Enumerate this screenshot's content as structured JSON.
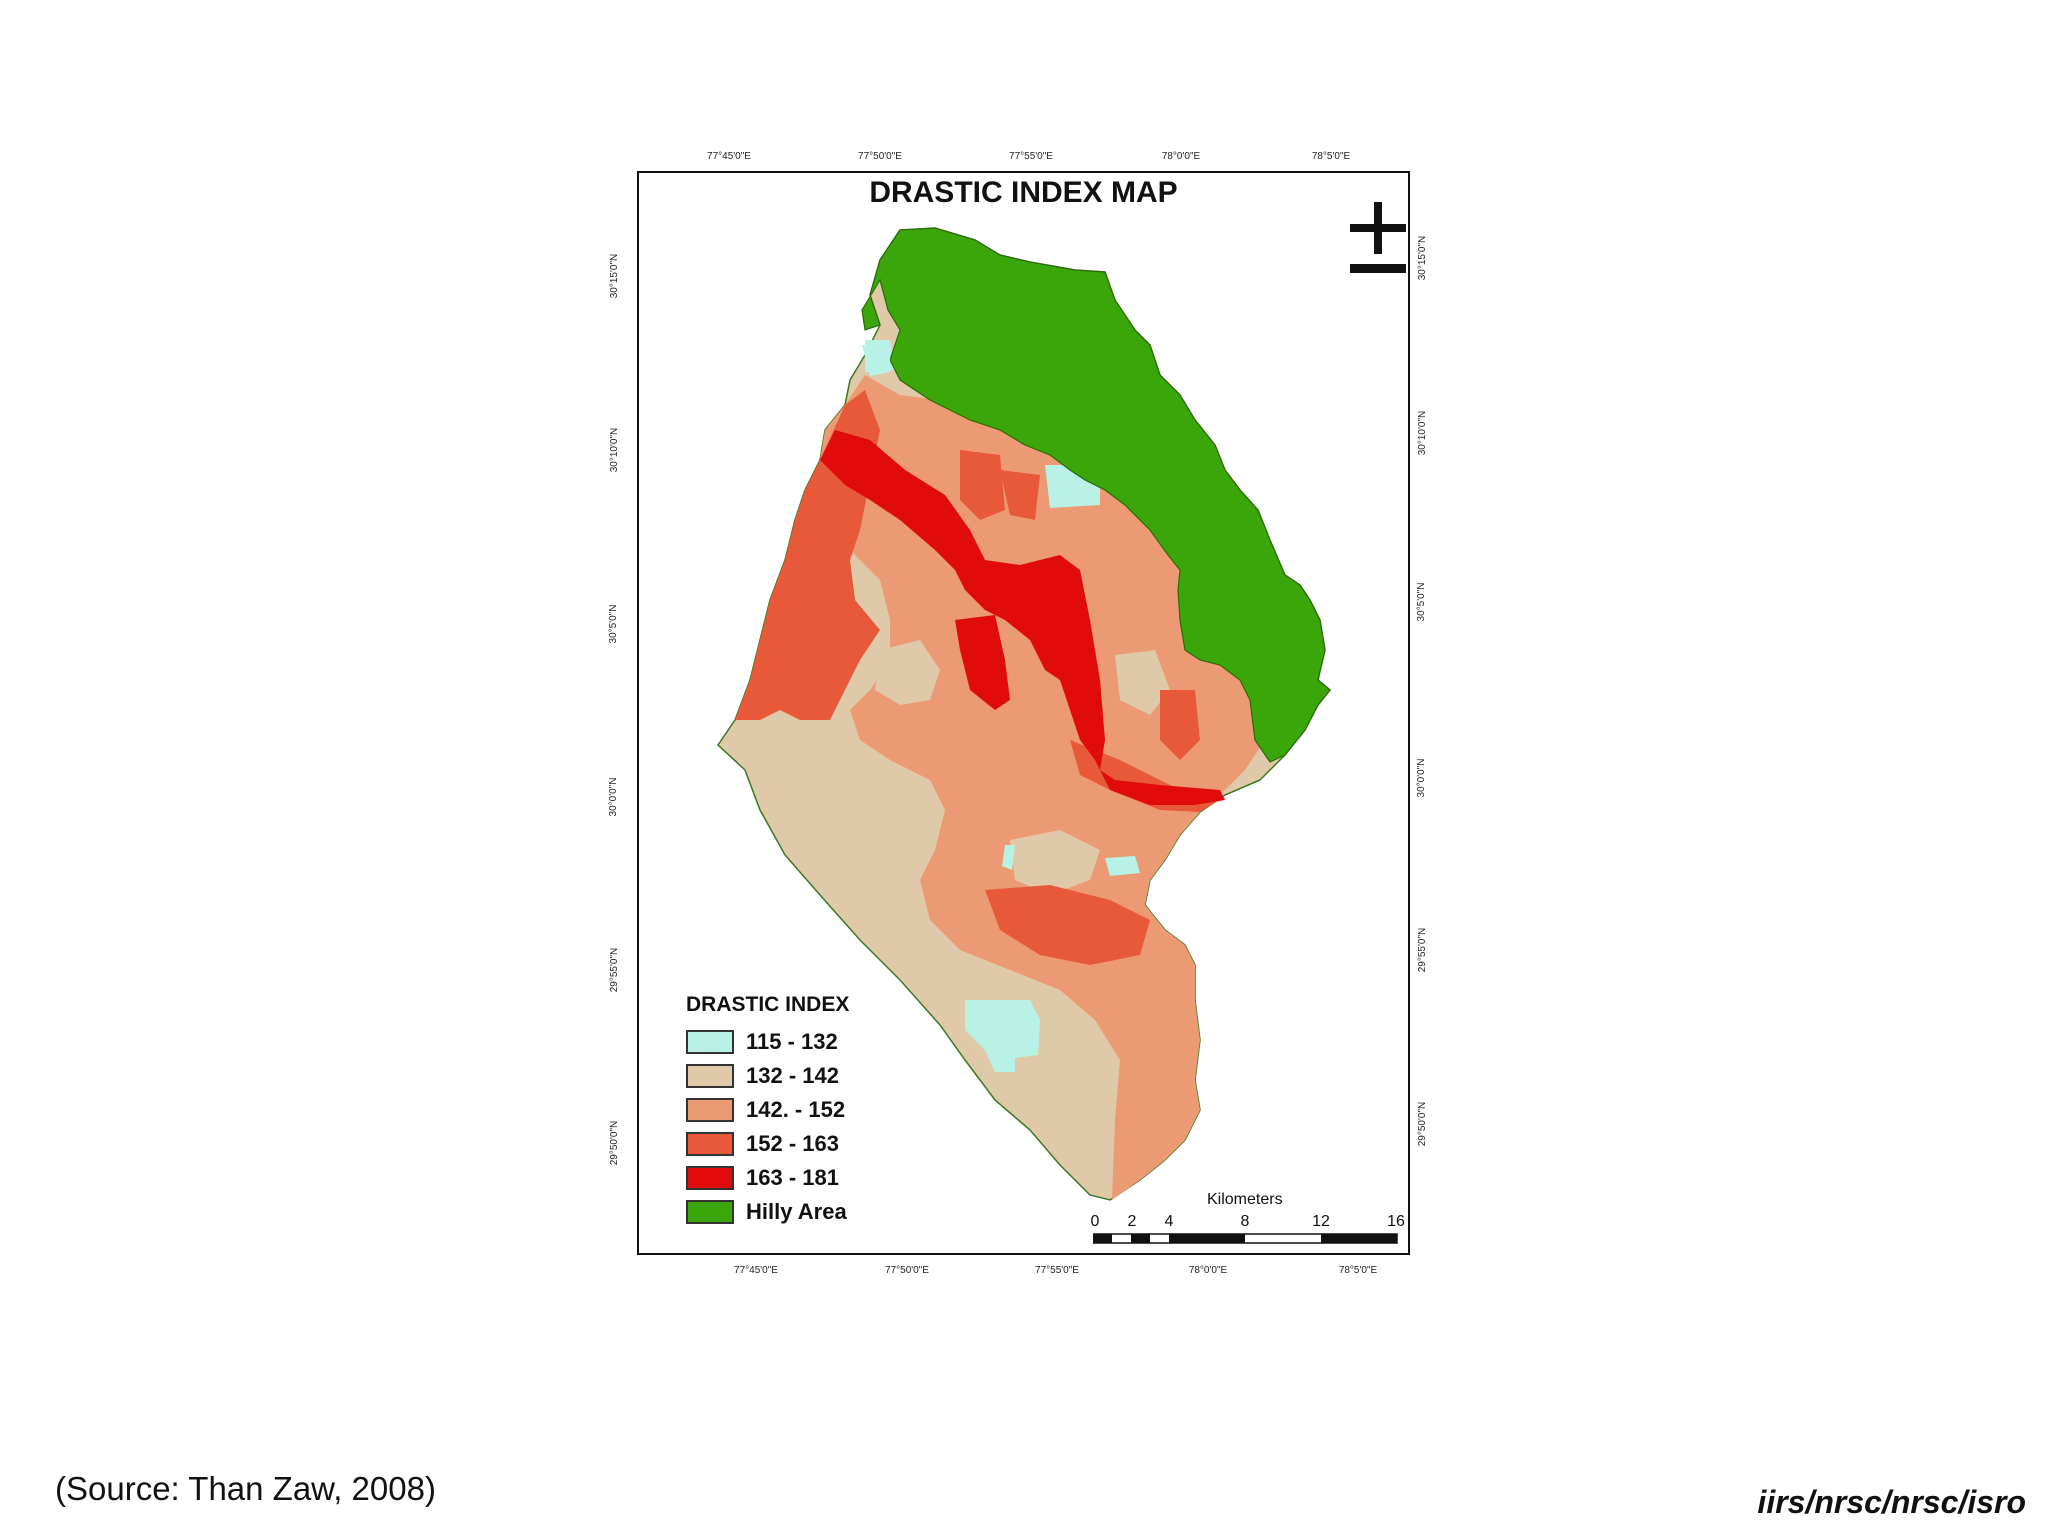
{
  "map": {
    "title": "DRASTIC INDEX MAP",
    "top_ticks": [
      "77°45'0\"E",
      "77°50'0\"E",
      "77°55'0\"E",
      "78°0'0\"E",
      "78°5'0\"E"
    ],
    "bottom_ticks": [
      "77°45'0\"E",
      "77°50'0\"E",
      "77°55'0\"E",
      "78°0'0\"E",
      "78°5'0\"E"
    ],
    "left_ticks": [
      "30°15'0\"N",
      "30°10'0\"N",
      "30°5'0\"N",
      "30°0'0\"N",
      "29°55'0\"N",
      "29°50'0\"N"
    ],
    "right_ticks": [
      "30°15'0\"N",
      "30°10'0\"N",
      "30°5'0\"N",
      "30°0'0\"N",
      "29°55'0\"N",
      "29°50'0\"N"
    ],
    "north_arrow_icon": "north-arrow-icon"
  },
  "legend": {
    "title": "DRASTIC INDEX",
    "items": [
      {
        "label": "115 - 132",
        "color": "#b8f2e6"
      },
      {
        "label": "132 - 142",
        "color": "#dfc9a8"
      },
      {
        "label": "142. - 152",
        "color": "#ec9a74"
      },
      {
        "label": "152 - 163",
        "color": "#e8593a"
      },
      {
        "label": "163 - 181",
        "color": "#e00c0c"
      },
      {
        "label": "Hilly Area",
        "color": "#3aa60a"
      }
    ]
  },
  "scale": {
    "title": "Kilometers",
    "labels": [
      "0",
      "2",
      "4",
      "8",
      "12",
      "16"
    ]
  },
  "footer": {
    "source": "(Source: Than Zaw, 2008)",
    "credit": "iirs/nrsc/nrsc/isro"
  }
}
